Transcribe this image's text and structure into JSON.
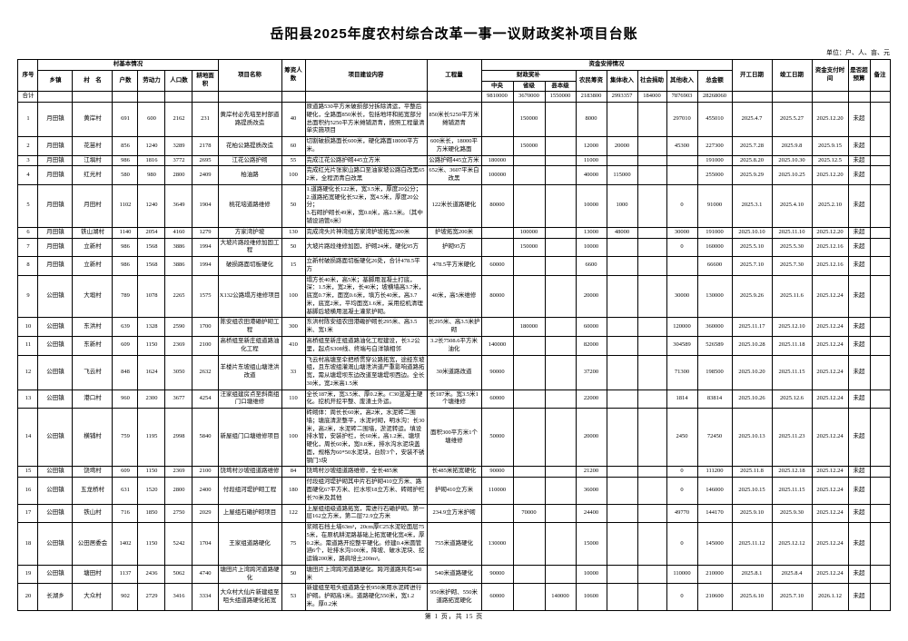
{
  "page": {
    "title": "岳阳县2025年度农村综合改革一事一议财政奖补项目台账",
    "unit_note": "单位：户、人、亩、元",
    "footer": "第 1 页，共 15 页"
  },
  "table": {
    "header": {
      "seq": "序号",
      "village_basic": "村基本情况",
      "township": "乡镇",
      "village": "村　名",
      "households": "户数",
      "labor": "劳动力",
      "population": "人口数",
      "farmland": "耕地面积",
      "project_name": "项目名称",
      "fundraisers": "筹资人数",
      "construction_content": "项目建设内容",
      "work_quantity": "工程量",
      "funding_arrangement": "资金安排情况",
      "fiscal_award": "财政奖补",
      "central": "中央",
      "provincial": "省级",
      "county": "县本级",
      "farmer_fund": "农民筹资",
      "collective_income": "集体收入",
      "social_donation": "社会捐助",
      "other_income": "其他收入",
      "total_amount": "总金额",
      "start_date": "开工日期",
      "end_date": "竣工日期",
      "payment_time": "资金支付时间",
      "over_budget": "是否超预算",
      "remarks": "备注"
    },
    "total_row": [
      "合计",
      "",
      "",
      "",
      "",
      "",
      "",
      "",
      "",
      "",
      "",
      "9810000",
      "3670000",
      "1550000",
      "2183800",
      "2993357",
      "184000",
      "7876903",
      "28268060",
      "",
      "",
      "",
      "",
      ""
    ],
    "rows": [
      [
        "1",
        "月田镇",
        "黄岸村",
        "691",
        "600",
        "2162",
        "231",
        "黄岸村必先垴至村部道路提质改造",
        "40",
        "原道路530平方米破损部分拆除清运，平整后硬化，全路面850米长，包括地坪和拓宽部分总面积约5250平方米摊铺沥青，按照工程量清单实施项目",
        "850米长5250平方米摊铺沥青",
        "",
        "150000",
        "",
        "8000",
        "",
        "",
        "297010",
        "455010",
        "2025.4.7",
        "2025.5.27",
        "2025.12.20",
        "未超",
        ""
      ],
      [
        "2",
        "月田镇",
        "花苗村",
        "856",
        "1240",
        "3289",
        "2178",
        "花柏公路提质改造",
        "60",
        "切割破损路面长600米，硬化路面18000平方米。",
        "600米长，18000平方米硬化路面",
        "",
        "150000",
        "",
        "12000",
        "20000",
        "",
        "45300",
        "227300",
        "2025.7.28",
        "2025.9.8",
        "2025.9.15",
        "未超",
        ""
      ],
      [
        "3",
        "月田镇",
        "江埧村",
        "986",
        "1816",
        "3772",
        "2695",
        "江花公路护砌",
        "55",
        "完成江花公路护砌445立方米",
        "公路护砌445立方米",
        "180000",
        "",
        "",
        "11000",
        "",
        "",
        "",
        "191000",
        "2025.8.20",
        "2025.10.30",
        "2025.12.5",
        "未超",
        ""
      ],
      [
        "4",
        "月田镇",
        "红光村",
        "580",
        "980",
        "2800",
        "2409",
        "柏油路",
        "100",
        "完成红光片张家山路口至油家坡公路白改黑652米，全程沥青白改黑",
        "652米、3607平米白改黑",
        "100000",
        "",
        "",
        "40000",
        "115000",
        "",
        "",
        "255000",
        "2025.9.29",
        "2025.10.25",
        "2025.12.20",
        "未超",
        ""
      ],
      [
        "5",
        "月田镇",
        "月田村",
        "1102",
        "1240",
        "3649",
        "1904",
        "桃花垴道路维修",
        "50",
        "1.道路硬化长122米，宽3.5米，厚度20公分；\n2.道路拓宽硬化长52米，宽4.5米，厚度20公分；\n3.石砌护砌长49米，宽0.8米，高2.5米。（其中铺设涵管6米）",
        "122米长道路硬化",
        "80000",
        "",
        "",
        "10000",
        "1000",
        "",
        "0",
        "91000",
        "2025.3.1",
        "2025.4.10",
        "2025.2.10",
        "未超",
        ""
      ],
      [
        "6",
        "月田镇",
        "铁山湖村",
        "1140",
        "2054",
        "4160",
        "1279",
        "方家湾护坡",
        "130",
        "完成湾头片神湾组方家湾护坡拓宽200米",
        "护坡拓宽200米",
        "",
        "100000",
        "",
        "13000",
        "48000",
        "",
        "30000",
        "191000",
        "2025.10.10",
        "2025.11.10",
        "2025.12.20",
        "未超",
        ""
      ],
      [
        "7",
        "月田镇",
        "立新村",
        "986",
        "1568",
        "3886",
        "1994",
        "大坡片路段维修加固工程",
        "50",
        "大坡片路段维修加固，护砌24米，硬化95方",
        "护砌95方",
        "",
        "150000",
        "",
        "10000",
        "",
        "",
        "0",
        "160000",
        "2025.5.10",
        "2025.5.30",
        "2025.12.16",
        "未超",
        ""
      ],
      [
        "8",
        "月田镇",
        "立新村",
        "986",
        "1568",
        "3886",
        "1994",
        "破损路面切板硬化",
        "15",
        "立新村破损路面切板硬化26处，合计478.5平方",
        "478.5平方米硬化",
        "60000",
        "",
        "",
        "6600",
        "",
        "",
        "",
        "66600",
        "2025.7.10",
        "2025.7.30",
        "2025.12.16",
        "未超",
        ""
      ],
      [
        "9",
        "公田镇",
        "大塅村",
        "789",
        "1078",
        "2265",
        "1575",
        "X132公路塌方维修项目",
        "100",
        "塌方长40米，高5米；基脚用混凝土打底，深：1.5米，宽2米，长40米；坡横墙高3.7米，底宽0.7米，面宽0.6米，填方长40米，高3.7米，底宽2米，平均面宽1.6米，采用挖机清理基脚后坡横用混凝土灌浆护砌。",
        "40米，高5米维修",
        "80000",
        "",
        "",
        "20000",
        "",
        "",
        "30000",
        "130000",
        "2025.9.26",
        "2025.11.6",
        "2025.12.24",
        "未超",
        ""
      ],
      [
        "10",
        "公田镇",
        "东洪村",
        "639",
        "1328",
        "2590",
        "1700",
        "陈安组农田港磡护砌工程",
        "300",
        "东洪村陈安组农田港磡护砌长295米、高3.5米、宽1米",
        "长295米、高3.5米护砌",
        "",
        "180000",
        "",
        "60000",
        "",
        "",
        "120000",
        "360000",
        "2025.11.17",
        "2025.12.10",
        "2025.12.24",
        "未超",
        ""
      ],
      [
        "11",
        "公田镇",
        "东新村",
        "609",
        "1150",
        "2369",
        "2100",
        "高桥组至新庄组道路油化工程",
        "410",
        "高桥组至新庄组道路油化工程建设，长3.2公里，起点S308线、终端与白洋镇相邻",
        "3.2长7508.6平方米油化",
        "140000",
        "",
        "",
        "82000",
        "",
        "",
        "304589",
        "526589",
        "2025.10.28",
        "2025.11.18",
        "2025.12.24",
        "未超",
        ""
      ],
      [
        "12",
        "公田镇",
        "飞云村",
        "848",
        "1624",
        "3050",
        "2632",
        "羊楼片东坡组山塘泄洪改道",
        "33",
        "飞云村高塘至伞把桥贯穿公路拓宽，途经东坡组，且东坡组灌溉山塘泄洪道严重影响道路拓宽，需从塘堤坝东边改道至塘堤坝西边。全长30米，宽2米高1.5米",
        "30米道路改道",
        "90000",
        "",
        "",
        "37200",
        "",
        "",
        "71300",
        "198500",
        "2025.10.20",
        "2025.11.15",
        "2025.12.24",
        "未超",
        ""
      ],
      [
        "13",
        "公田镇",
        "港口村",
        "960",
        "2300",
        "3677",
        "4254",
        "汪家组建房点至斜南组门口塘维修",
        "110",
        "全长187米，宽3.5米、厚0.2米。C30混凝土硬化。挖机开挖平整、废渣土外运。",
        "长187米。宽3.5米1个塘维修",
        "60000",
        "",
        "",
        "22000",
        "",
        "",
        "1814",
        "83814",
        "2025.10.26",
        "2025.12.6",
        "2025.12.24",
        "未超",
        ""
      ],
      [
        "14",
        "公田镇",
        "横铺村",
        "759",
        "1195",
        "2998",
        "5840",
        "新屋组门口塘维修项目",
        "100",
        "砖砌体：周长长60米，高2米，水泥砖二围墙；塘底清淤整平，水泥衬砌，明水沟：长30米，高2米，水泥砖二围墙，淤泥转运。填设排水管，安装护栏，长60米，高1.2米、塘坝硬化，周长60米，宽0.8米，排水沟水泥块盖面，规格为60*50水泥块，台阶3个，安装不锈钢门3块",
        "面积300平方米1个塘维修",
        "50000",
        "",
        "",
        "20000",
        "",
        "",
        "2450",
        "72450",
        "2025.10.13",
        "2025.11.23",
        "2025.12.24",
        "未超",
        ""
      ],
      [
        "15",
        "公田镇",
        "饶塆村",
        "609",
        "1150",
        "2369",
        "2100",
        "饶塆村沙坡组道路维修",
        "84",
        "饶塆村沙坡组道路维修，全长485米",
        "长485米拓宽硬化",
        "90000",
        "",
        "",
        "21200",
        "",
        "",
        "0",
        "111200",
        "2025.11.8",
        "2025.12.18",
        "2025.12.24",
        "未超",
        ""
      ],
      [
        "16",
        "公田镇",
        "五龙桥村",
        "631",
        "1520",
        "2800",
        "2400",
        "付段组河堤护砌工程",
        "180",
        "付段组河堤护砌其中片石护砌410立方米、路面硬化67平方米、拦水坝18立方米、砖砌护栏长70米及其他",
        "护砌410立方米",
        "110000",
        "",
        "",
        "36000",
        "",
        "",
        "0",
        "146000",
        "2025.10.15",
        "2025.11.15",
        "2025.12.24",
        "未超",
        ""
      ],
      [
        "17",
        "公田镇",
        "铁山村",
        "716",
        "1850",
        "2750",
        "2029",
        "上屋组石磡护砌项目",
        "122",
        "上屋组组级道路拓宽，需进行石磡护砌。第一层162立方米，第二层72.9立方米",
        "234.9立方米护砌",
        "",
        "70000",
        "",
        "24400",
        "",
        "",
        "49770",
        "144170",
        "2025.9.10",
        "2025.9.30",
        "2025.12.24",
        "未超",
        ""
      ],
      [
        "18",
        "公田镇",
        "公田居委会",
        "1402",
        "1150",
        "5242",
        "1704",
        "王家组道路硬化",
        "75",
        "浆砌石挡土墙63m³，20cm厚C25水泥砼面层755米，在原机耕泥路基础上拓宽硬化宽4米，厚0.2米。需道路开挖整平硬化。修建0.4米圆管涵6个，砼排水沟100米，降坡、破水泥块、挖运输200米，路肩培土200m³。",
        "755米道路硬化",
        "130000",
        "",
        "",
        "15000",
        "",
        "",
        "0",
        "145000",
        "2025.11.12",
        "2025.12.12",
        "2025.12.24",
        "未超",
        ""
      ],
      [
        "19",
        "公田镇",
        "塘田村",
        "1137",
        "2436",
        "5062",
        "4740",
        "塘田片上湾跨河道路硬化",
        "50",
        "塘田片上湾跨河道路硬化。跨河道路共有540米",
        "540米道路硬化",
        "90000",
        "",
        "",
        "10000",
        "",
        "",
        "110000",
        "210000",
        "2025.8.1",
        "2025.8.4",
        "2025.12.24",
        "未超",
        ""
      ],
      [
        "20",
        "长湖乡",
        "大众村",
        "902",
        "2729",
        "3416",
        "3334",
        "大众村大仙片新建组至咀头组道路硬化拓宽",
        "53",
        "新建组至咀头组道路全长950米用水泥砖进行护砌。护砌高1米。道路硬化550米，宽1.2米。厚0.2米",
        "950米护砌、550米道路拓宽硬化",
        "60000",
        "",
        "140000",
        "10600",
        "",
        "",
        "0",
        "210600",
        "2025.6.10",
        "2025.7.10",
        "2026.1.12",
        "未超",
        ""
      ]
    ]
  }
}
